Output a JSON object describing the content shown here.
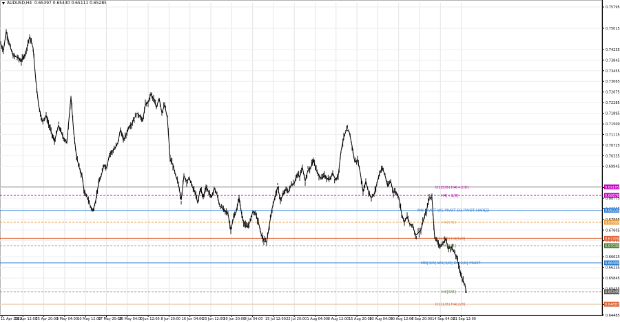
{
  "window": {
    "symbol_timeframe": "AUDUSD,H4",
    "ohlc": "0.65397 0.65430 0.65111 0.65285"
  },
  "chart_data": {
    "type": "candlestick",
    "symbol": "AUDUSD",
    "timeframe": "H4",
    "ylim": [
      0.6448,
      0.7595
    ],
    "price_ticks": [
      "0.75795",
      "0.75015",
      "0.74235",
      "0.73845",
      "0.73455",
      "0.73065",
      "0.72675",
      "0.72285",
      "0.71895",
      "0.71500",
      "0.71115",
      "0.70725",
      "0.70335",
      "0.69945",
      "0.69165",
      "0.68775",
      "0.68385",
      "0.67995",
      "0.67605",
      "0.67215",
      "0.66625",
      "0.66235",
      "0.65845",
      "0.65455",
      "0.64875",
      "0.64485"
    ],
    "tick_values": [
      0.75795,
      0.75015,
      0.74235,
      0.73845,
      0.73455,
      0.73065,
      0.72675,
      0.72285,
      0.71895,
      0.715,
      0.71115,
      0.70725,
      0.70335,
      0.69945,
      0.69165,
      0.68775,
      0.68385,
      0.67995,
      0.67605,
      0.67215,
      0.66625,
      0.66235,
      0.65845,
      0.65455,
      0.64875,
      0.64485
    ],
    "time_labels": [
      "11 Apr 2022",
      "18 Apr 12:00",
      "25 Apr 20:00",
      "3 May 04:00",
      "10 May 12:00",
      "17 May 20:00",
      "25 May 04:00",
      "1 Jun 12:00",
      "8 Jun 20:00",
      "16 Jun 04:00",
      "23 Jun 12:00",
      "30 Jun 20:00",
      "8 Jul 04:00",
      "15 Jul 12:00",
      "22 Jul 20:00",
      "1 Aug 04:00",
      "8 Aug 12:00",
      "15 Aug 20:00",
      "23 Aug 04:00",
      "30 Aug 12:00",
      "6 Sep 20:00",
      "14 Sep 04:00",
      "21 Sep 12:00"
    ],
    "close_path": [
      [
        0,
        0.7445
      ],
      [
        4,
        0.742
      ],
      [
        8,
        0.749
      ],
      [
        13,
        0.744
      ],
      [
        18,
        0.74
      ],
      [
        24,
        0.7395
      ],
      [
        30,
        0.738
      ],
      [
        36,
        0.741
      ],
      [
        42,
        0.747
      ],
      [
        47,
        0.743
      ],
      [
        51,
        0.731
      ],
      [
        55,
        0.722
      ],
      [
        60,
        0.716
      ],
      [
        66,
        0.718
      ],
      [
        72,
        0.713
      ],
      [
        78,
        0.7085
      ],
      [
        84,
        0.7145
      ],
      [
        90,
        0.7105
      ],
      [
        96,
        0.708
      ],
      [
        102,
        0.725
      ],
      [
        106,
        0.712
      ],
      [
        110,
        0.703
      ],
      [
        114,
        0.699
      ],
      [
        118,
        0.696
      ],
      [
        122,
        0.689
      ],
      [
        126,
        0.688
      ],
      [
        130,
        0.685
      ],
      [
        134,
        0.683
      ],
      [
        138,
        0.687
      ],
      [
        142,
        0.693
      ],
      [
        146,
        0.696
      ],
      [
        150,
        0.7
      ],
      [
        154,
        0.699
      ],
      [
        158,
        0.704
      ],
      [
        162,
        0.705
      ],
      [
        166,
        0.706
      ],
      [
        170,
        0.708
      ],
      [
        174,
        0.713
      ],
      [
        178,
        0.709
      ],
      [
        182,
        0.711
      ],
      [
        186,
        0.714
      ],
      [
        190,
        0.715
      ],
      [
        194,
        0.717
      ],
      [
        198,
        0.719
      ],
      [
        202,
        0.718
      ],
      [
        206,
        0.716
      ],
      [
        210,
        0.722
      ],
      [
        214,
        0.723
      ],
      [
        218,
        0.726
      ],
      [
        222,
        0.724
      ],
      [
        226,
        0.721
      ],
      [
        230,
        0.7245
      ],
      [
        234,
        0.719
      ],
      [
        238,
        0.722
      ],
      [
        242,
        0.717
      ],
      [
        246,
        0.702
      ],
      [
        250,
        0.7
      ],
      [
        254,
        0.696
      ],
      [
        258,
        0.693
      ],
      [
        262,
        0.687
      ],
      [
        266,
        0.696
      ],
      [
        270,
        0.694
      ],
      [
        274,
        0.695
      ],
      [
        278,
        0.692
      ],
      [
        282,
        0.69
      ],
      [
        286,
        0.686
      ],
      [
        290,
        0.6915
      ],
      [
        294,
        0.688
      ],
      [
        298,
        0.692
      ],
      [
        302,
        0.69
      ],
      [
        306,
        0.688
      ],
      [
        310,
        0.6915
      ],
      [
        314,
        0.689
      ],
      [
        318,
        0.685
      ],
      [
        322,
        0.684
      ],
      [
        326,
        0.683
      ],
      [
        330,
        0.682
      ],
      [
        334,
        0.676
      ],
      [
        338,
        0.6805
      ],
      [
        342,
        0.683
      ],
      [
        346,
        0.688
      ],
      [
        350,
        0.6815
      ],
      [
        354,
        0.678
      ],
      [
        358,
        0.677
      ],
      [
        362,
        0.679
      ],
      [
        366,
        0.683
      ],
      [
        370,
        0.682
      ],
      [
        374,
        0.679
      ],
      [
        378,
        0.6745
      ],
      [
        382,
        0.672
      ],
      [
        386,
        0.6715
      ],
      [
        390,
        0.678
      ],
      [
        394,
        0.684
      ],
      [
        398,
        0.688
      ],
      [
        402,
        0.692
      ],
      [
        406,
        0.687
      ],
      [
        410,
        0.689
      ],
      [
        414,
        0.691
      ],
      [
        418,
        0.69
      ],
      [
        422,
        0.693
      ],
      [
        426,
        0.693
      ],
      [
        430,
        0.6965
      ],
      [
        434,
        0.6955
      ],
      [
        438,
        0.699
      ],
      [
        442,
        0.694
      ],
      [
        446,
        0.698
      ],
      [
        450,
        0.699
      ],
      [
        454,
        0.702
      ],
      [
        458,
        0.698
      ],
      [
        462,
        0.696
      ],
      [
        466,
        0.695
      ],
      [
        470,
        0.696
      ],
      [
        474,
        0.695
      ],
      [
        478,
        0.6945
      ],
      [
        482,
        0.697
      ],
      [
        486,
        0.6945
      ],
      [
        490,
        0.696
      ],
      [
        494,
        0.705
      ],
      [
        498,
        0.71
      ],
      [
        502,
        0.713
      ],
      [
        506,
        0.712
      ],
      [
        510,
        0.707
      ],
      [
        514,
        0.701
      ],
      [
        518,
        0.702
      ],
      [
        522,
        0.697
      ],
      [
        526,
        0.69
      ],
      [
        530,
        0.694
      ],
      [
        534,
        0.69
      ],
      [
        538,
        0.688
      ],
      [
        542,
        0.689
      ],
      [
        546,
        0.693
      ],
      [
        550,
        0.697
      ],
      [
        554,
        0.699
      ],
      [
        558,
        0.696
      ],
      [
        562,
        0.692
      ],
      [
        566,
        0.694
      ],
      [
        570,
        0.69
      ],
      [
        574,
        0.69
      ],
      [
        578,
        0.688
      ],
      [
        582,
        0.682
      ],
      [
        586,
        0.679
      ],
      [
        590,
        0.681
      ],
      [
        594,
        0.678
      ],
      [
        598,
        0.678
      ],
      [
        602,
        0.674
      ],
      [
        606,
        0.675
      ],
      [
        610,
        0.676
      ],
      [
        614,
        0.68
      ],
      [
        618,
        0.683
      ],
      [
        622,
        0.688
      ],
      [
        626,
        0.688
      ],
      [
        630,
        0.673
      ],
      [
        634,
        0.672
      ],
      [
        638,
        0.67
      ],
      [
        642,
        0.671
      ],
      [
        646,
        0.673
      ],
      [
        650,
        0.669
      ],
      [
        654,
        0.67
      ],
      [
        658,
        0.668
      ],
      [
        662,
        0.666
      ],
      [
        666,
        0.662
      ],
      [
        670,
        0.658
      ],
      [
        674,
        0.656
      ],
      [
        676,
        0.6529
      ]
    ],
    "levels": [
      {
        "name": "D1[5/8] H4[+2/8]",
        "value": 0.69185,
        "color": "#9a9a9a",
        "style": "solid",
        "label_color": "#c000c0",
        "badge": "0.69185",
        "badge_color": "#c000c0"
      },
      {
        "name": "H4[+1/8]",
        "value": 0.68876,
        "color": "#c000c0",
        "style": "dash",
        "label_color": "#c000c0",
        "badge": "0.68876",
        "badge_color": "#c000c0"
      },
      {
        "name": "MN PIVOT W1 PIVOT D1 PIVOT HARED",
        "value": 0.6833,
        "color": "#2d7fd6",
        "style": "solid",
        "label_color": "#2d7fd6",
        "badge": "0.68335",
        "badge_color": "#2d7fd6"
      },
      {
        "name": "H4[7/8]",
        "value": 0.6789,
        "color": "#e8a040",
        "style": "dash",
        "label_color": "#e8a040",
        "badge": "0.67890",
        "badge_color": "#e8a040"
      },
      {
        "name": "D1[4/8] H4[6/8]",
        "value": 0.673,
        "color": "#e06030",
        "style": "solid",
        "label_color": "#e06030",
        "badge": "0.67305",
        "badge_color": "#e06030"
      },
      {
        "name": "H4[5/8]",
        "value": 0.6703,
        "color": "#9a9a9a",
        "style": "dash",
        "label_color": "#4a7a30",
        "badge": "0.67030",
        "badge_color": "#4a7a30"
      },
      {
        "name": "MN[3/8] W1[3/8] D1[2/8] PIVOT",
        "value": 0.664,
        "color": "#2d7fd6",
        "style": "solid",
        "label_color": "#2d7fd6",
        "badge": "0.66400",
        "badge_color": "#2d7fd6"
      },
      {
        "name": "H4[3/8]",
        "value": 0.6534,
        "color": "#9a9a9a",
        "style": "dash",
        "label_color": "#4a7a30",
        "badge": "0.65345",
        "badge_color": "#555555"
      },
      {
        "name": "D1[1/8] H4[2/8]",
        "value": 0.6488,
        "color": "#e8c8a8",
        "style": "solid",
        "label_color": "#e06030",
        "badge": "0.64887",
        "badge_color": "#e06030"
      }
    ],
    "current_price": "0.65285"
  }
}
